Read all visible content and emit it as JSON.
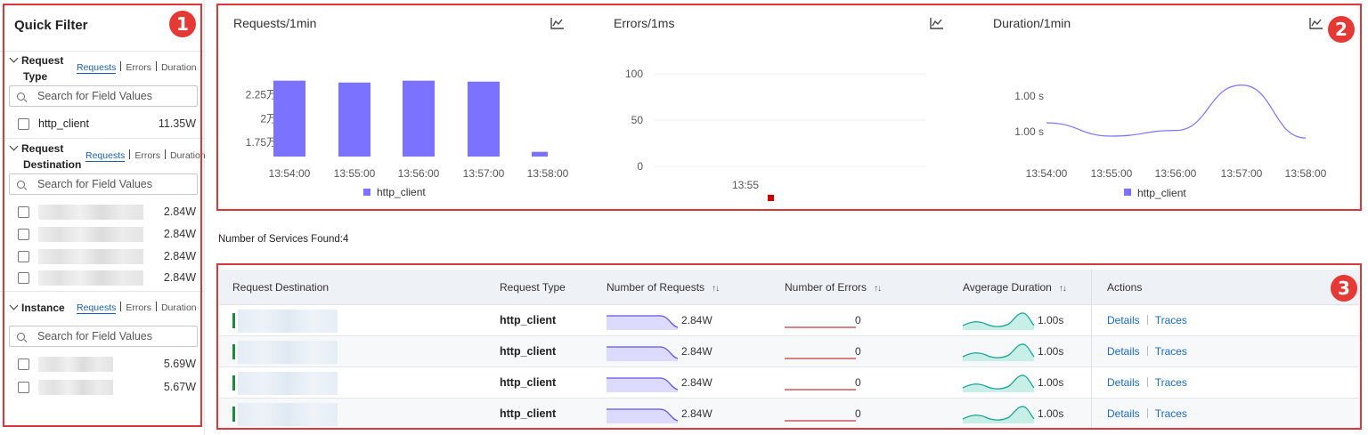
{
  "sidebar": {
    "title": "Quick Filter",
    "sections": {
      "request_type": {
        "title_line1": "Request",
        "title_line2": "Type",
        "tabs": [
          "Requests",
          "Errors",
          "Duration"
        ],
        "search_placeholder": "Search for Field Values",
        "items": [
          {
            "label": "http_client",
            "value": "11.35W"
          }
        ]
      },
      "request_destination": {
        "title_line1": "Request",
        "title_line2": "Destination",
        "tabs": [
          "Requests",
          "Errors",
          "Duration"
        ],
        "search_placeholder": "Search for Field Values",
        "items": [
          {
            "value": "2.84W"
          },
          {
            "value": "2.84W"
          },
          {
            "value": "2.84W"
          },
          {
            "value": "2.84W"
          }
        ]
      },
      "instance": {
        "title": "Instance",
        "tabs": [
          "Requests",
          "Errors",
          "Duration"
        ],
        "search_placeholder": "Search for Field Values",
        "items": [
          {
            "value": "5.69W"
          },
          {
            "value": "5.67W"
          }
        ]
      }
    }
  },
  "badges": [
    "1",
    "2",
    "3"
  ],
  "charts": {
    "requests": {
      "title": "Requests/1min",
      "icon": "line-chart-icon",
      "legend": "http_client"
    },
    "errors": {
      "title": "Errors/1ms",
      "icon": "line-chart-icon",
      "y_ticks": [
        "100",
        "50",
        "0"
      ],
      "x_ticks": [
        "13:55"
      ]
    },
    "duration": {
      "title": "Duration/1min",
      "icon": "line-chart-icon",
      "y_ticks": [
        "1.00 s",
        "1.00 s"
      ],
      "x_ticks": [
        "13:54:00",
        "13:55:00",
        "13:56:00",
        "13:57:00",
        "13:58:00"
      ],
      "legend": "http_client"
    }
  },
  "chart_data": [
    {
      "type": "bar",
      "title": "Requests/1min",
      "categories": [
        "13:54:00",
        "13:55:00",
        "13:56:00",
        "13:57:00",
        "13:58:00"
      ],
      "series": [
        {
          "name": "http_client",
          "values": [
            24000,
            23800,
            24000,
            23900,
            16500
          ]
        }
      ],
      "y_tick_labels": [
        "2.25万",
        "2万",
        "1.75万"
      ],
      "y_tick_values": [
        22500,
        20000,
        17500
      ],
      "ylim": [
        16000,
        25000
      ],
      "color": "#7b73ff",
      "legend": "bottom"
    },
    {
      "type": "scatter",
      "title": "Errors/1ms",
      "x": [
        "13:55"
      ],
      "y_tick_values": [
        100,
        50,
        0
      ],
      "ylim": [
        0,
        100
      ],
      "color": "#cc0000"
    },
    {
      "type": "line",
      "title": "Duration/1min",
      "categories": [
        "13:54:00",
        "13:55:00",
        "13:56:00",
        "13:57:00",
        "13:58:00"
      ],
      "series": [
        {
          "name": "http_client",
          "values": [
            1.0,
            0.93,
            0.96,
            1.2,
            0.92
          ]
        }
      ],
      "y_tick_labels": [
        "1.00 s",
        "1.00 s"
      ],
      "color": "#7b73ff",
      "legend": "bottom"
    }
  ],
  "services": {
    "count_label": "Number of Services Found:4",
    "columns": [
      "Request Destination",
      "Request Type",
      "Number of Requests",
      "Number of Errors",
      "Avgerage Duration",
      "Actions"
    ],
    "sort_icon": "sort-icon",
    "rows": [
      {
        "type": "http_client",
        "requests": "2.84W",
        "errors": "0",
        "duration": "1.00s",
        "details": "Details",
        "traces": "Traces"
      },
      {
        "type": "http_client",
        "requests": "2.84W",
        "errors": "0",
        "duration": "1.00s",
        "details": "Details",
        "traces": "Traces"
      },
      {
        "type": "http_client",
        "requests": "2.84W",
        "errors": "0",
        "duration": "1.00s",
        "details": "Details",
        "traces": "Traces"
      },
      {
        "type": "http_client",
        "requests": "2.84W",
        "errors": "0",
        "duration": "1.00s",
        "details": "Details",
        "traces": "Traces"
      }
    ]
  },
  "colors": {
    "accent_red": "#d9363e",
    "bar": "#7b73ff",
    "teal": "#1aa594",
    "link": "#1b6ac0",
    "error_line": "#c23b3b"
  }
}
